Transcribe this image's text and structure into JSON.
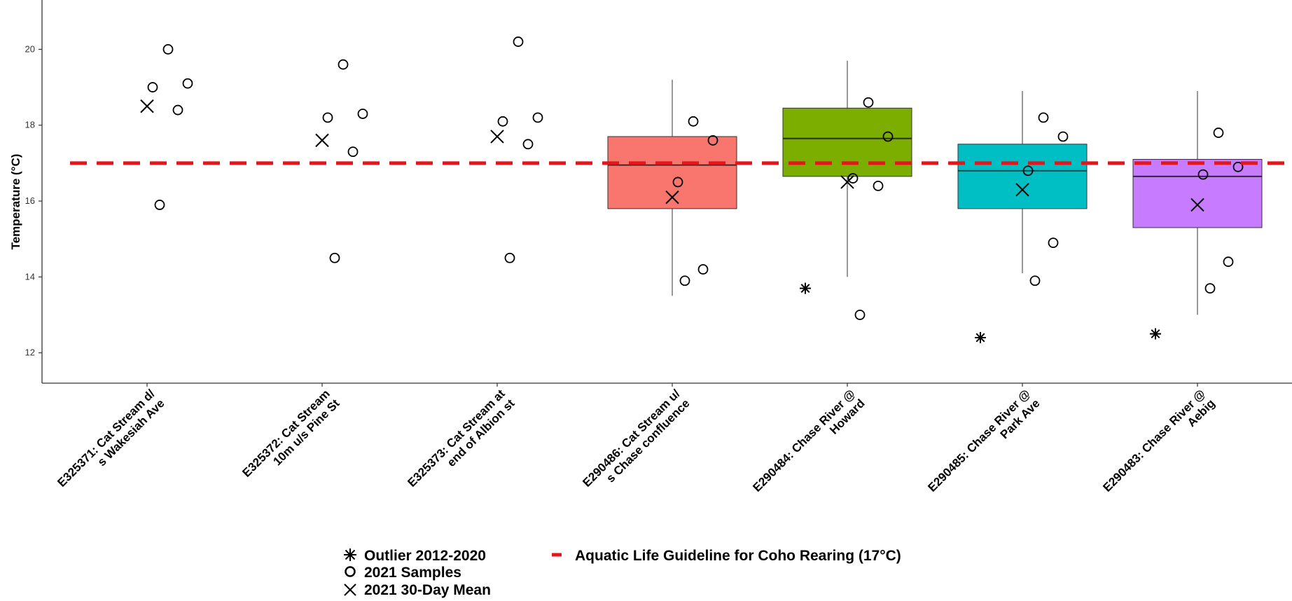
{
  "chart_data": {
    "type": "boxplot",
    "ylabel": "Temperature (°C)",
    "ylim": [
      11.2,
      21.3
    ],
    "yticks": [
      12,
      14,
      16,
      18,
      20
    ],
    "grid": false,
    "guideline": {
      "value": 17,
      "color": "#e3161c",
      "label": "Aquatic Life Guideline for Coho Rearing (17°C)"
    },
    "legend": {
      "placement": "bottom",
      "outlier": "Outlier 2012-2020",
      "samples": "2021 Samples",
      "mean": "2021 30-Day Mean",
      "guideline": "Aquatic Life Guideline for Coho Rearing (17°C)"
    },
    "categories": [
      {
        "label": [
          "E325371: Cat Stream d/",
          "s Wakesiah Ave"
        ],
        "box": null,
        "samples": [
          20.0,
          19.1,
          19.0,
          18.4,
          15.9
        ],
        "mean": 18.5,
        "outliers": []
      },
      {
        "label": [
          "E325372: Cat Stream",
          "10m u/s Pine St"
        ],
        "box": null,
        "samples": [
          19.6,
          18.3,
          18.2,
          17.3,
          14.5
        ],
        "mean": 17.6,
        "outliers": []
      },
      {
        "label": [
          "E325373: Cat Stream at",
          "end of Albion st"
        ],
        "box": null,
        "samples": [
          20.2,
          18.2,
          18.1,
          17.5,
          14.5
        ],
        "mean": 17.7,
        "outliers": []
      },
      {
        "label": [
          "E290486: Cat Stream u/",
          "s Chase confluence"
        ],
        "box": {
          "whisker_low": 13.5,
          "q1": 15.8,
          "median": 16.95,
          "q3": 17.7,
          "whisker_high": 19.2,
          "color": "#f8766d"
        },
        "samples": [
          18.1,
          17.6,
          16.5,
          14.2,
          13.9
        ],
        "mean": 16.1,
        "outliers": []
      },
      {
        "label": [
          "E290484: Chase River @",
          "Howard"
        ],
        "box": {
          "whisker_low": 14.0,
          "q1": 16.65,
          "median": 17.65,
          "q3": 18.45,
          "whisker_high": 19.7,
          "color": "#7cae00"
        },
        "samples": [
          18.6,
          17.7,
          16.6,
          16.4,
          13.0
        ],
        "mean": 16.5,
        "outliers": [
          13.7
        ]
      },
      {
        "label": [
          "E290485: Chase River @",
          "Park Ave"
        ],
        "box": {
          "whisker_low": 14.1,
          "q1": 15.8,
          "median": 16.8,
          "q3": 17.5,
          "whisker_high": 18.9,
          "color": "#00bfc4"
        },
        "samples": [
          18.2,
          17.7,
          16.8,
          14.9,
          13.9
        ],
        "mean": 16.3,
        "outliers": [
          12.4
        ]
      },
      {
        "label": [
          "E290483: Chase River @",
          "Aebig"
        ],
        "box": {
          "whisker_low": 13.0,
          "q1": 15.3,
          "median": 16.65,
          "q3": 17.1,
          "whisker_high": 18.9,
          "color": "#c77cff"
        },
        "samples": [
          17.8,
          16.9,
          16.7,
          14.4,
          13.7
        ],
        "mean": 15.9,
        "outliers": [
          12.5
        ]
      }
    ]
  }
}
